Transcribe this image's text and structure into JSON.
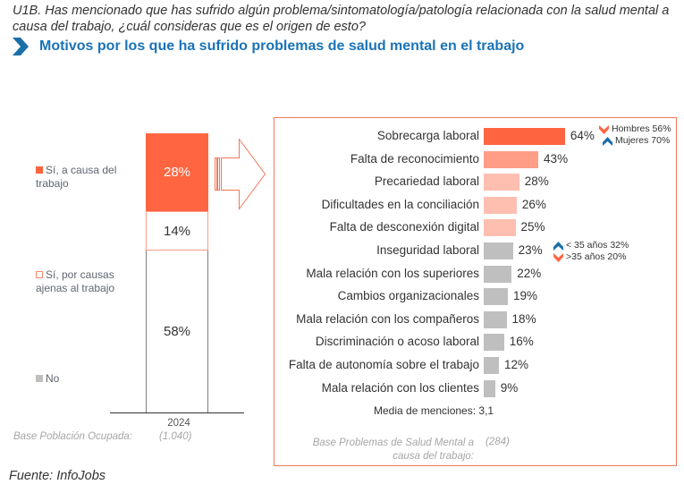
{
  "header": {
    "question": "U1B. Has mencionado que has sufrido algún problema/sintomatología/patología relacionada con la salud mental a causa del trabajo, ¿cuál consideras que es el origen de esto?",
    "subtitle": "Motivos por los que ha sufrido problemas de salud mental en el trabajo"
  },
  "colors": {
    "accent": "#ff6540",
    "title_blue": "#1a73b8",
    "bar_dark": "#ff6540",
    "bar_mid": "#ff9d87",
    "bar_light": "#ffbfb0",
    "bar_gray": "#bfbfbf",
    "up_icon": "#1a6fa8",
    "down_icon": "#ff6540"
  },
  "chart_data": [
    {
      "type": "bar",
      "orientation": "vertical-stacked-100",
      "categories": [
        "2024"
      ],
      "series": [
        {
          "name": "Sí, a causa del trabajo",
          "values": [
            28
          ],
          "label": "28%"
        },
        {
          "name": "Sí, por causas ajenas al trabajo",
          "values": [
            14
          ],
          "label": "14%"
        },
        {
          "name": "No",
          "values": [
            58
          ],
          "label": "58%"
        }
      ],
      "legend": [
        "Sí, a causa del trabajo",
        "Sí, por causas ajenas al trabajo",
        "No"
      ],
      "legend_placement": "left",
      "base_label": "Base Población Ocupada:",
      "base_n": "(1.040)",
      "ylim": [
        0,
        100
      ]
    },
    {
      "type": "bar",
      "orientation": "horizontal",
      "title": "Motivos por los que ha sufrido problemas de salud mental en el trabajo",
      "categories": [
        "Sobrecarga laboral",
        "Falta de reconocimiento",
        "Precariedad laboral",
        "Dificultades en la conciliación",
        "Falta de desconexión digital",
        "Inseguridad laboral",
        "Mala relación con los superiores",
        "Cambios organizacionales",
        "Mala relación con los compañeros",
        "Discriminación o acoso laboral",
        "Falta de autonomía sobre el trabajo",
        "Mala relación con los clientes"
      ],
      "values": [
        64,
        43,
        28,
        26,
        25,
        23,
        22,
        19,
        18,
        16,
        12,
        9
      ],
      "value_labels": [
        "64%",
        "43%",
        "28%",
        "26%",
        "25%",
        "23%",
        "22%",
        "19%",
        "18%",
        "16%",
        "12%",
        "9%"
      ],
      "bar_tones": [
        "dark",
        "mid",
        "light",
        "light",
        "light",
        "gray",
        "gray",
        "gray",
        "gray",
        "gray",
        "gray",
        "gray"
      ],
      "xlim": [
        0,
        100
      ],
      "annotations": [
        {
          "row": 0,
          "items": [
            {
              "direction": "down",
              "text": "Hombres 56%"
            },
            {
              "direction": "up",
              "text": "Mujeres 70%"
            }
          ]
        },
        {
          "row": 5,
          "items": [
            {
              "direction": "up",
              "text": "< 35 años 32%"
            },
            {
              "direction": "down",
              "text": ">35 años 20%"
            }
          ]
        }
      ],
      "media_menciones": "Media de menciones: 3,1",
      "base_label": "Base Problemas de Salud Mental a causa del trabajo:",
      "base_n": "(284)"
    }
  ],
  "footer": {
    "source": "Fuente: InfoJobs"
  }
}
